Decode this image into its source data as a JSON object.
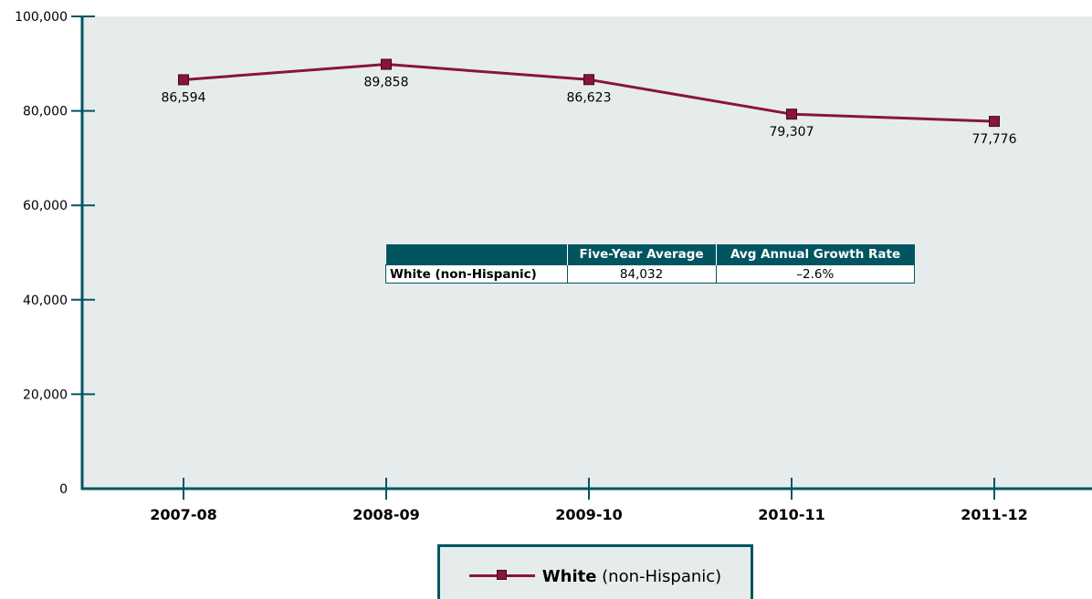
{
  "chart_data": {
    "type": "line",
    "categories": [
      "2007-08",
      "2008-09",
      "2009-10",
      "2010-11",
      "2011-12"
    ],
    "series": [
      {
        "name": "White (non-Hispanic)",
        "values": [
          86594,
          89858,
          86623,
          79307,
          77776
        ],
        "data_labels": [
          "86,594",
          "89,858",
          "86,623",
          "79,307",
          "77,776"
        ],
        "color": "#8a1538",
        "marker": "square"
      }
    ],
    "ylim": [
      0,
      100000
    ],
    "y_ticks": [
      0,
      20000,
      40000,
      60000,
      80000,
      100000
    ],
    "y_tick_labels": [
      "0",
      "20,000",
      "40,000",
      "60,000",
      "80,000",
      "100,000"
    ],
    "grid": false,
    "plot_background": "#e6ecec",
    "axis_color": "#005561",
    "legend_position": "bottom-center"
  },
  "legend": {
    "name_bold": "White",
    "name_rest": " (non-Hispanic)"
  },
  "summary_table": {
    "headers": [
      "",
      "Five-Year Average",
      "Avg Annual Growth Rate"
    ],
    "row_label": "White (non-Hispanic)",
    "five_year_average": "84,032",
    "avg_annual_growth_rate": "–2.6%"
  }
}
